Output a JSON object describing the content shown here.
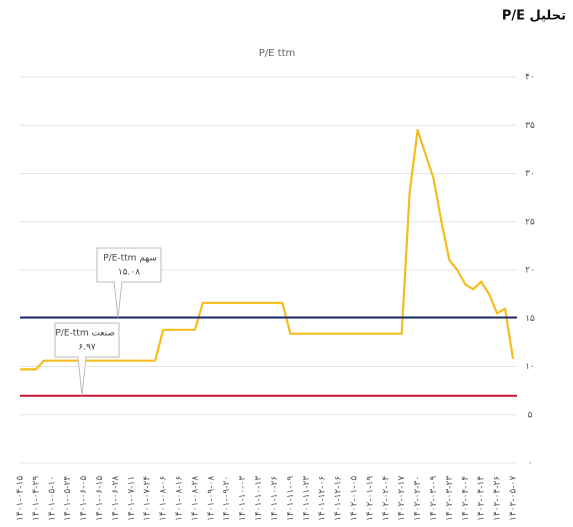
{
  "page_title": "تحلیل P/E",
  "chart_data": {
    "type": "line",
    "title": "P/E ttm",
    "categories": [
      "۱۴۰۱-۰۴-۱۵",
      null,
      "۱۴۰۱-۰۴-۲۹",
      null,
      "۱۴۰۱-۰۵-۱۰",
      null,
      "۱۴۰۱-۰۵-۲۴",
      null,
      "۱۴۰۱-۰۶-۰۵",
      null,
      "۱۴۰۱-۰۶-۱۵",
      null,
      "۱۴۰۱-۰۶-۲۸",
      null,
      "۱۴۰۱-۰۷-۱۱",
      null,
      "۱۴۰۱-۰۷-۲۴",
      null,
      "۱۴۰۱-۰۸-۰۶",
      null,
      "۱۴۰۱-۰۸-۱۶",
      null,
      "۱۴۰۱-۰۸-۲۸",
      null,
      "۱۴۰۱-۰۹-۰۸",
      null,
      "۱۴۰۱-۰۹-۲۰",
      null,
      "۱۴۰۱-۱۰-۰۳",
      null,
      "۱۴۰۱-۱۰-۱۳",
      null,
      "۱۴۰۱-۱۰-۲۶",
      null,
      "۱۴۰۱-۱۱-۰۹",
      null,
      "۱۴۰۱-۱۱-۲۳",
      null,
      "۱۴۰۱-۱۲-۰۶",
      null,
      "۱۴۰۱-۱۲-۱۶",
      null,
      "۱۴۰۲-۰۱-۰۵",
      null,
      "۱۴۰۲-۰۱-۱۹",
      null,
      "۱۴۰۲-۰۲-۰۴",
      null,
      "۱۴۰۲-۰۲-۱۷",
      null,
      "۱۴۰۲-۰۲-۳۰",
      null,
      "۱۴۰۲-۰۳-۰۹",
      null,
      "۱۴۰۲-۰۳-۲۳",
      null,
      "۱۴۰۲-۰۴-۰۴",
      null,
      "۱۴۰۲-۰۴-۱۴",
      null,
      "۱۴۰۲-۰۴-۲۶",
      null,
      "۱۴۰۲-۰۵-۰۷"
    ],
    "series": [
      {
        "color": "#f5bd1f",
        "values": [
          9.7,
          9.7,
          9.7,
          10.6,
          10.6,
          10.6,
          10.6,
          10.6,
          10.6,
          10.6,
          10.6,
          10.6,
          10.6,
          10.6,
          10.6,
          10.6,
          10.6,
          10.6,
          13.8,
          13.8,
          13.8,
          13.8,
          13.8,
          16.6,
          16.6,
          16.6,
          16.6,
          16.6,
          16.6,
          16.6,
          16.6,
          16.6,
          16.6,
          16.6,
          13.4,
          13.4,
          13.4,
          13.4,
          13.4,
          13.4,
          13.4,
          13.4,
          13.4,
          13.4,
          13.4,
          13.4,
          13.4,
          13.4,
          13.4,
          28,
          34.5,
          32,
          29.5,
          25,
          21,
          20,
          18.5,
          18,
          18.8,
          17.5,
          15.5,
          16,
          10.8
        ]
      }
    ],
    "reference_lines": [
      {
        "name": "سهم P/E-ttm",
        "value": 15.08,
        "value_label": "۱۵.۰۸",
        "color": "#1b2a6b"
      },
      {
        "name": "صنعت P/E-ttm",
        "value": 6.97,
        "value_label": "۶.۹۷",
        "color": "#c8102e"
      }
    ],
    "ylim": [
      0,
      40
    ],
    "yticks": [
      {
        "value": 0,
        "label": "۰"
      },
      {
        "value": 5,
        "label": "۵"
      },
      {
        "value": 10,
        "label": "۱۰"
      },
      {
        "value": 15,
        "label": "۱۵"
      },
      {
        "value": 20,
        "label": "۲۰"
      },
      {
        "value": 25,
        "label": "۲۵"
      },
      {
        "value": 30,
        "label": "۳۰"
      },
      {
        "value": 35,
        "label": "۳۵"
      },
      {
        "value": 40,
        "label": "۴۰"
      }
    ],
    "grid": true
  }
}
